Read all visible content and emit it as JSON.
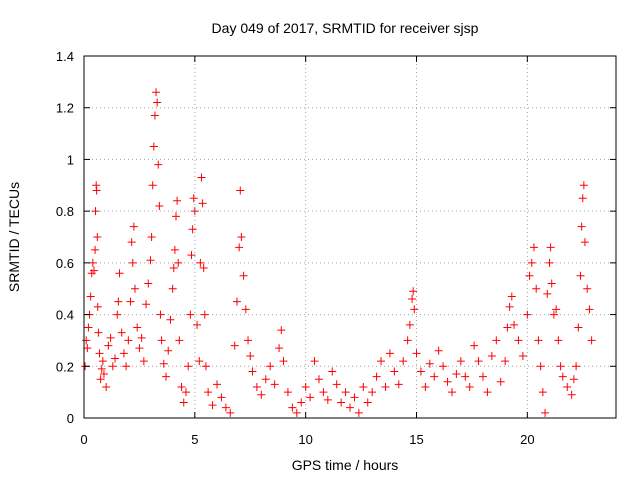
{
  "chart_data": {
    "type": "scatter",
    "title": "Day 049 of 2017, SRMTID for receiver sjsp",
    "xlabel": "GPS time / hours",
    "ylabel": "SRMTID / TECUs",
    "xlim": [
      0,
      24
    ],
    "ylim": [
      0,
      1.4
    ],
    "xticks": [
      0,
      5,
      10,
      15,
      20
    ],
    "xtick_labels": [
      "0",
      "5",
      "10",
      "15",
      "20"
    ],
    "yticks": [
      0,
      0.2,
      0.4,
      0.6,
      0.8,
      1,
      1.2,
      1.4
    ],
    "ytick_labels": [
      "0",
      "0.2",
      "0.4",
      "0.6",
      "0.8",
      "1",
      "1.2",
      "1.4"
    ],
    "grid": true,
    "marker": "+",
    "color": "#ff0000",
    "series": [
      {
        "name": "SRMTID",
        "points": [
          [
            0.05,
            0.2
          ],
          [
            0.1,
            0.3
          ],
          [
            0.15,
            0.27
          ],
          [
            0.2,
            0.35
          ],
          [
            0.25,
            0.4
          ],
          [
            0.3,
            0.47
          ],
          [
            0.35,
            0.56
          ],
          [
            0.4,
            0.6
          ],
          [
            0.45,
            0.57
          ],
          [
            0.5,
            0.65
          ],
          [
            0.52,
            0.8
          ],
          [
            0.55,
            0.9
          ],
          [
            0.57,
            0.88
          ],
          [
            0.6,
            0.7
          ],
          [
            0.62,
            0.43
          ],
          [
            0.65,
            0.33
          ],
          [
            0.7,
            0.25
          ],
          [
            0.75,
            0.15
          ],
          [
            0.8,
            0.19
          ],
          [
            0.85,
            0.22
          ],
          [
            0.9,
            0.17
          ],
          [
            1.0,
            0.12
          ],
          [
            1.1,
            0.28
          ],
          [
            1.2,
            0.31
          ],
          [
            1.3,
            0.2
          ],
          [
            1.4,
            0.23
          ],
          [
            1.5,
            0.4
          ],
          [
            1.55,
            0.45
          ],
          [
            1.6,
            0.56
          ],
          [
            1.7,
            0.33
          ],
          [
            1.8,
            0.25
          ],
          [
            1.9,
            0.2
          ],
          [
            2.0,
            0.3
          ],
          [
            2.1,
            0.45
          ],
          [
            2.15,
            0.68
          ],
          [
            2.2,
            0.6
          ],
          [
            2.25,
            0.74
          ],
          [
            2.3,
            0.5
          ],
          [
            2.4,
            0.35
          ],
          [
            2.5,
            0.27
          ],
          [
            2.6,
            0.31
          ],
          [
            2.7,
            0.22
          ],
          [
            2.8,
            0.44
          ],
          [
            2.9,
            0.52
          ],
          [
            3.0,
            0.61
          ],
          [
            3.05,
            0.7
          ],
          [
            3.1,
            0.9
          ],
          [
            3.15,
            1.05
          ],
          [
            3.2,
            1.17
          ],
          [
            3.25,
            1.26
          ],
          [
            3.3,
            1.22
          ],
          [
            3.35,
            0.98
          ],
          [
            3.4,
            0.82
          ],
          [
            3.45,
            0.4
          ],
          [
            3.5,
            0.3
          ],
          [
            3.6,
            0.21
          ],
          [
            3.7,
            0.16
          ],
          [
            3.8,
            0.26
          ],
          [
            3.9,
            0.38
          ],
          [
            4.0,
            0.5
          ],
          [
            4.05,
            0.58
          ],
          [
            4.1,
            0.65
          ],
          [
            4.15,
            0.78
          ],
          [
            4.2,
            0.84
          ],
          [
            4.25,
            0.6
          ],
          [
            4.3,
            0.3
          ],
          [
            4.4,
            0.12
          ],
          [
            4.5,
            0.06
          ],
          [
            4.6,
            0.1
          ],
          [
            4.7,
            0.2
          ],
          [
            4.8,
            0.4
          ],
          [
            4.85,
            0.63
          ],
          [
            4.9,
            0.73
          ],
          [
            4.95,
            0.85
          ],
          [
            5.0,
            0.8
          ],
          [
            5.1,
            0.36
          ],
          [
            5.2,
            0.22
          ],
          [
            5.25,
            0.6
          ],
          [
            5.3,
            0.93
          ],
          [
            5.35,
            0.83
          ],
          [
            5.4,
            0.58
          ],
          [
            5.45,
            0.4
          ],
          [
            5.5,
            0.2
          ],
          [
            5.6,
            0.1
          ],
          [
            5.8,
            0.05
          ],
          [
            6.0,
            0.13
          ],
          [
            6.2,
            0.08
          ],
          [
            6.4,
            0.04
          ],
          [
            6.6,
            0.02
          ],
          [
            6.8,
            0.28
          ],
          [
            6.9,
            0.45
          ],
          [
            7.0,
            0.66
          ],
          [
            7.05,
            0.88
          ],
          [
            7.1,
            0.7
          ],
          [
            7.2,
            0.55
          ],
          [
            7.3,
            0.42
          ],
          [
            7.4,
            0.3
          ],
          [
            7.5,
            0.24
          ],
          [
            7.6,
            0.18
          ],
          [
            7.8,
            0.12
          ],
          [
            8.0,
            0.09
          ],
          [
            8.2,
            0.15
          ],
          [
            8.4,
            0.2
          ],
          [
            8.6,
            0.13
          ],
          [
            8.8,
            0.27
          ],
          [
            8.9,
            0.34
          ],
          [
            9.0,
            0.22
          ],
          [
            9.2,
            0.1
          ],
          [
            9.4,
            0.04
          ],
          [
            9.6,
            0.02
          ],
          [
            9.8,
            0.06
          ],
          [
            10.0,
            0.12
          ],
          [
            10.2,
            0.08
          ],
          [
            10.4,
            0.22
          ],
          [
            10.6,
            0.15
          ],
          [
            10.8,
            0.1
          ],
          [
            11.0,
            0.07
          ],
          [
            11.2,
            0.18
          ],
          [
            11.4,
            0.13
          ],
          [
            11.6,
            0.06
          ],
          [
            11.8,
            0.1
          ],
          [
            12.0,
            0.04
          ],
          [
            12.2,
            0.08
          ],
          [
            12.4,
            0.02
          ],
          [
            12.6,
            0.12
          ],
          [
            12.8,
            0.06
          ],
          [
            13.0,
            0.1
          ],
          [
            13.2,
            0.16
          ],
          [
            13.4,
            0.22
          ],
          [
            13.6,
            0.12
          ],
          [
            13.8,
            0.25
          ],
          [
            14.0,
            0.18
          ],
          [
            14.2,
            0.13
          ],
          [
            14.4,
            0.22
          ],
          [
            14.6,
            0.3
          ],
          [
            14.7,
            0.36
          ],
          [
            14.8,
            0.46
          ],
          [
            14.85,
            0.49
          ],
          [
            14.9,
            0.42
          ],
          [
            15.0,
            0.25
          ],
          [
            15.2,
            0.18
          ],
          [
            15.4,
            0.12
          ],
          [
            15.6,
            0.21
          ],
          [
            15.8,
            0.16
          ],
          [
            16.0,
            0.26
          ],
          [
            16.2,
            0.2
          ],
          [
            16.4,
            0.14
          ],
          [
            16.6,
            0.1
          ],
          [
            16.8,
            0.17
          ],
          [
            17.0,
            0.22
          ],
          [
            17.2,
            0.16
          ],
          [
            17.4,
            0.12
          ],
          [
            17.6,
            0.28
          ],
          [
            17.8,
            0.22
          ],
          [
            18.0,
            0.16
          ],
          [
            18.2,
            0.1
          ],
          [
            18.4,
            0.24
          ],
          [
            18.6,
            0.3
          ],
          [
            18.8,
            0.14
          ],
          [
            19.0,
            0.22
          ],
          [
            19.1,
            0.35
          ],
          [
            19.2,
            0.43
          ],
          [
            19.3,
            0.47
          ],
          [
            19.4,
            0.36
          ],
          [
            19.6,
            0.3
          ],
          [
            19.8,
            0.24
          ],
          [
            20.0,
            0.4
          ],
          [
            20.1,
            0.55
          ],
          [
            20.2,
            0.6
          ],
          [
            20.3,
            0.66
          ],
          [
            20.4,
            0.5
          ],
          [
            20.5,
            0.3
          ],
          [
            20.6,
            0.2
          ],
          [
            20.7,
            0.1
          ],
          [
            20.8,
            0.02
          ],
          [
            20.9,
            0.48
          ],
          [
            21.0,
            0.6
          ],
          [
            21.05,
            0.66
          ],
          [
            21.1,
            0.52
          ],
          [
            21.2,
            0.4
          ],
          [
            21.3,
            0.42
          ],
          [
            21.4,
            0.3
          ],
          [
            21.5,
            0.2
          ],
          [
            21.6,
            0.16
          ],
          [
            21.8,
            0.12
          ],
          [
            22.0,
            0.09
          ],
          [
            22.1,
            0.15
          ],
          [
            22.2,
            0.2
          ],
          [
            22.3,
            0.35
          ],
          [
            22.4,
            0.55
          ],
          [
            22.45,
            0.74
          ],
          [
            22.5,
            0.85
          ],
          [
            22.55,
            0.9
          ],
          [
            22.6,
            0.68
          ],
          [
            22.7,
            0.5
          ],
          [
            22.8,
            0.42
          ],
          [
            22.9,
            0.3
          ]
        ]
      }
    ]
  }
}
